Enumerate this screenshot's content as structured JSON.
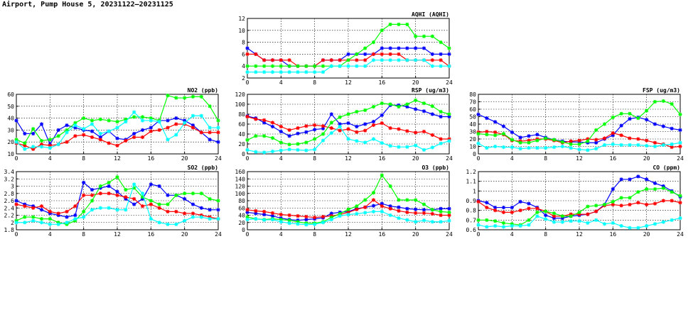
{
  "page": {
    "title": "Airport, Pump House 5, 20231122–20231125"
  },
  "colors": {
    "series_1": "#0000ff",
    "series_2": "#ff0000",
    "series_3": "#00ff00",
    "series_4": "#00ffff",
    "grid": "#000000"
  },
  "chart_data": [
    {
      "id": "aqhi",
      "type": "line",
      "title": "AQHI (AQHI)",
      "xlim": [
        0,
        24
      ],
      "xticks": [
        0,
        4,
        8,
        12,
        16,
        20,
        24
      ],
      "ylim": [
        2,
        12
      ],
      "yticks": [
        2,
        4,
        6,
        8,
        10,
        12
      ],
      "grid": true,
      "series": [
        {
          "color": "#0000ff",
          "values": [
            7,
            6,
            5,
            5,
            5,
            4,
            4,
            4,
            4,
            5,
            5,
            5,
            6,
            6,
            6,
            6,
            7,
            7,
            7,
            7,
            7,
            7,
            6,
            6,
            6
          ]
        },
        {
          "color": "#ff0000",
          "values": [
            6,
            6,
            5,
            5,
            5,
            5,
            4,
            4,
            4,
            5,
            5,
            5,
            5,
            5,
            5,
            6,
            6,
            6,
            6,
            5,
            5,
            5,
            5,
            5,
            4
          ]
        },
        {
          "color": "#00ff00",
          "values": [
            4,
            4,
            4,
            4,
            4,
            4,
            4,
            4,
            4,
            4,
            4,
            4,
            5,
            6,
            7,
            8,
            10,
            11,
            11,
            11,
            9,
            9,
            9,
            8,
            7
          ]
        },
        {
          "color": "#00ffff",
          "values": [
            3,
            3,
            3,
            3,
            3,
            3,
            3,
            3,
            3,
            3,
            4,
            4,
            4,
            4,
            4,
            5,
            5,
            5,
            5,
            5,
            5,
            5,
            4,
            4,
            4
          ]
        }
      ]
    },
    {
      "id": "no2",
      "type": "line",
      "title": "NO2 (ppb)",
      "xlim": [
        0,
        24
      ],
      "xticks": [
        0,
        4,
        8,
        12,
        16,
        20,
        24
      ],
      "ylim": [
        10,
        60
      ],
      "yticks": [
        10,
        20,
        30,
        40,
        50,
        60
      ],
      "grid": true,
      "series": [
        {
          "color": "#0000ff",
          "values": [
            38,
            27,
            27,
            35,
            18,
            30,
            34,
            32,
            30,
            29,
            24,
            29,
            23,
            22,
            27,
            30,
            32,
            38,
            38,
            40,
            38,
            34,
            28,
            22,
            20
          ]
        },
        {
          "color": "#ff0000",
          "values": [
            19,
            17,
            14,
            18,
            17,
            18,
            20,
            25,
            26,
            24,
            22,
            19,
            17,
            21,
            24,
            24,
            29,
            30,
            32,
            35,
            35,
            32,
            28,
            28,
            28
          ]
        },
        {
          "color": "#00ff00",
          "values": [
            22,
            19,
            31,
            21,
            22,
            25,
            30,
            36,
            40,
            38,
            39,
            38,
            37,
            39,
            41,
            41,
            40,
            38,
            59,
            57,
            57,
            58,
            58,
            50,
            38
          ]
        },
        {
          "color": "#00ffff",
          "values": [
            20,
            14,
            16,
            16,
            15,
            18,
            28,
            34,
            31,
            35,
            27,
            29,
            32,
            37,
            45,
            38,
            38,
            37,
            22,
            26,
            36,
            42,
            42,
            32,
            32
          ]
        }
      ]
    },
    {
      "id": "rsp",
      "type": "line",
      "title": "RSP (ug/m3)",
      "xlim": [
        0,
        24
      ],
      "xticks": [
        0,
        4,
        8,
        12,
        16,
        20,
        24
      ],
      "ylim": [
        0,
        120
      ],
      "yticks": [
        0,
        20,
        40,
        60,
        80,
        100,
        120
      ],
      "grid": true,
      "series": [
        {
          "color": "#0000ff",
          "values": [
            76,
            72,
            63,
            55,
            45,
            36,
            41,
            44,
            49,
            51,
            80,
            60,
            62,
            55,
            60,
            65,
            78,
            98,
            98,
            95,
            90,
            86,
            80,
            75,
            75
          ]
        },
        {
          "color": "#ff0000",
          "values": [
            75,
            70,
            68,
            63,
            55,
            48,
            52,
            56,
            58,
            56,
            52,
            47,
            50,
            44,
            47,
            58,
            62,
            52,
            50,
            46,
            43,
            45,
            38,
            30,
            30
          ]
        },
        {
          "color": "#00ff00",
          "values": [
            28,
            36,
            36,
            32,
            23,
            19,
            20,
            23,
            30,
            40,
            63,
            74,
            80,
            85,
            88,
            95,
            102,
            100,
            95,
            100,
            108,
            102,
            96,
            85,
            80
          ]
        },
        {
          "color": "#00ffff",
          "values": [
            8,
            4,
            3,
            5,
            7,
            9,
            8,
            7,
            9,
            27,
            42,
            55,
            30,
            26,
            23,
            30,
            22,
            16,
            14,
            14,
            17,
            8,
            13,
            21,
            26
          ]
        }
      ]
    },
    {
      "id": "fsp",
      "type": "line",
      "title": "FSP (ug/m3)",
      "xlim": [
        0,
        24
      ],
      "xticks": [
        0,
        4,
        8,
        12,
        16,
        20,
        24
      ],
      "ylim": [
        0,
        80
      ],
      "yticks": [
        0,
        10,
        20,
        30,
        40,
        50,
        60,
        70,
        80
      ],
      "grid": true,
      "series": [
        {
          "color": "#0000ff",
          "values": [
            53,
            48,
            43,
            37,
            29,
            22,
            24,
            26,
            22,
            19,
            17,
            16,
            16,
            15,
            15,
            20,
            25,
            38,
            47,
            49,
            46,
            40,
            37,
            34,
            32
          ]
        },
        {
          "color": "#ff0000",
          "values": [
            29,
            30,
            29,
            26,
            18,
            17,
            18,
            20,
            20,
            18,
            15,
            17,
            18,
            20,
            19,
            21,
            28,
            25,
            21,
            20,
            18,
            15,
            13,
            9,
            10
          ]
        },
        {
          "color": "#00ff00",
          "values": [
            27,
            26,
            25,
            27,
            19,
            15,
            15,
            18,
            21,
            19,
            16,
            13,
            13,
            17,
            32,
            40,
            49,
            54,
            54,
            48,
            58,
            70,
            71,
            67,
            53
          ]
        },
        {
          "color": "#00ffff",
          "values": [
            14,
            8,
            10,
            9,
            9,
            7,
            8,
            8,
            8,
            9,
            10,
            8,
            6,
            5,
            7,
            12,
            13,
            12,
            12,
            12,
            11,
            10,
            12,
            13,
            15
          ]
        }
      ]
    },
    {
      "id": "so2",
      "type": "line",
      "title": "SO2 (ppb)",
      "xlim": [
        0,
        24
      ],
      "xticks": [
        0,
        4,
        8,
        12,
        16,
        20,
        24
      ],
      "ylim": [
        1.8,
        3.4
      ],
      "yticks": [
        1.8,
        2.0,
        2.2,
        2.4,
        2.6,
        2.8,
        3.0,
        3.2,
        3.4
      ],
      "grid": true,
      "series": [
        {
          "color": "#0000ff",
          "values": [
            2.6,
            2.5,
            2.45,
            2.35,
            2.25,
            2.2,
            2.15,
            2.2,
            3.1,
            2.9,
            2.95,
            3.0,
            2.85,
            2.65,
            2.5,
            2.65,
            3.05,
            3.0,
            2.75,
            2.75,
            2.65,
            2.5,
            2.4,
            2.35,
            2.35
          ]
        },
        {
          "color": "#ff0000",
          "values": [
            2.5,
            2.45,
            2.4,
            2.45,
            2.3,
            2.25,
            2.3,
            2.45,
            2.75,
            2.75,
            2.8,
            2.8,
            2.75,
            2.7,
            2.65,
            2.45,
            2.5,
            2.4,
            2.3,
            2.3,
            2.25,
            2.25,
            2.2,
            2.15,
            2.1
          ]
        },
        {
          "color": "#00ff00",
          "values": [
            2.05,
            2.15,
            2.15,
            2.1,
            2.1,
            2.0,
            1.95,
            2.05,
            2.3,
            2.6,
            3.0,
            3.1,
            3.25,
            2.9,
            2.95,
            2.7,
            2.6,
            2.5,
            2.5,
            2.75,
            2.8,
            2.8,
            2.8,
            2.65,
            2.6
          ]
        },
        {
          "color": "#00ffff",
          "values": [
            2.0,
            2.0,
            2.05,
            2.0,
            1.95,
            1.95,
            2.0,
            2.1,
            2.15,
            2.35,
            2.4,
            2.4,
            2.35,
            2.35,
            3.05,
            2.8,
            2.1,
            2.0,
            1.95,
            1.95,
            2.05,
            2.15,
            2.15,
            2.1,
            2.1
          ]
        }
      ]
    },
    {
      "id": "o3",
      "type": "line",
      "title": "O3 (ppb)",
      "xlim": [
        0,
        24
      ],
      "xticks": [
        0,
        4,
        8,
        12,
        16,
        20,
        24
      ],
      "ylim": [
        0,
        160
      ],
      "yticks": [
        0,
        20,
        40,
        60,
        80,
        100,
        120,
        140,
        160
      ],
      "grid": true,
      "series": [
        {
          "color": "#0000ff",
          "values": [
            48,
            45,
            42,
            38,
            32,
            28,
            26,
            28,
            30,
            33,
            45,
            48,
            50,
            58,
            62,
            66,
            72,
            65,
            62,
            58,
            56,
            55,
            55,
            58,
            58
          ]
        },
        {
          "color": "#ff0000",
          "values": [
            55,
            52,
            50,
            46,
            42,
            40,
            38,
            36,
            34,
            36,
            38,
            42,
            48,
            56,
            62,
            82,
            65,
            58,
            52,
            48,
            46,
            46,
            44,
            40,
            40
          ]
        },
        {
          "color": "#00ff00",
          "values": [
            35,
            30,
            28,
            30,
            28,
            26,
            22,
            18,
            18,
            22,
            34,
            44,
            56,
            65,
            82,
            102,
            150,
            120,
            82,
            82,
            82,
            70,
            55,
            50,
            48
          ]
        },
        {
          "color": "#00ffff",
          "values": [
            28,
            30,
            27,
            28,
            22,
            18,
            16,
            14,
            15,
            20,
            28,
            38,
            42,
            44,
            47,
            50,
            50,
            40,
            32,
            27,
            22,
            26,
            22,
            22,
            25
          ]
        }
      ]
    },
    {
      "id": "co",
      "type": "line",
      "title": "CO (ppm)",
      "xlim": [
        0,
        24
      ],
      "xticks": [
        0,
        4,
        8,
        12,
        16,
        20,
        24
      ],
      "ylim": [
        0.6,
        1.2
      ],
      "yticks": [
        0.6,
        0.7,
        0.8,
        0.9,
        1.0,
        1.1,
        1.2
      ],
      "grid": true,
      "series": [
        {
          "color": "#0000ff",
          "values": [
            0.9,
            0.88,
            0.83,
            0.83,
            0.83,
            0.89,
            0.87,
            0.83,
            0.75,
            0.72,
            0.72,
            0.74,
            0.75,
            0.76,
            0.79,
            0.86,
            1.02,
            1.12,
            1.12,
            1.15,
            1.12,
            1.08,
            1.05,
            1.0,
            0.94
          ]
        },
        {
          "color": "#ff0000",
          "values": [
            0.89,
            0.83,
            0.8,
            0.78,
            0.78,
            0.8,
            0.82,
            0.82,
            0.79,
            0.74,
            0.74,
            0.76,
            0.76,
            0.76,
            0.79,
            0.85,
            0.86,
            0.85,
            0.86,
            0.88,
            0.86,
            0.87,
            0.9,
            0.9,
            0.88
          ]
        },
        {
          "color": "#00ff00",
          "values": [
            0.7,
            0.7,
            0.69,
            0.67,
            0.66,
            0.65,
            0.7,
            0.78,
            0.79,
            0.77,
            0.74,
            0.74,
            0.78,
            0.84,
            0.85,
            0.86,
            0.89,
            0.93,
            0.93,
            0.99,
            1.02,
            1.02,
            1.03,
            0.99,
            0.95
          ]
        },
        {
          "color": "#00ffff",
          "values": [
            0.65,
            0.63,
            0.64,
            0.63,
            0.64,
            0.64,
            0.65,
            0.74,
            0.71,
            0.68,
            0.68,
            0.69,
            0.69,
            0.67,
            0.7,
            0.66,
            0.67,
            0.64,
            0.62,
            0.62,
            0.64,
            0.66,
            0.68,
            0.7,
            0.72
          ]
        }
      ]
    }
  ]
}
